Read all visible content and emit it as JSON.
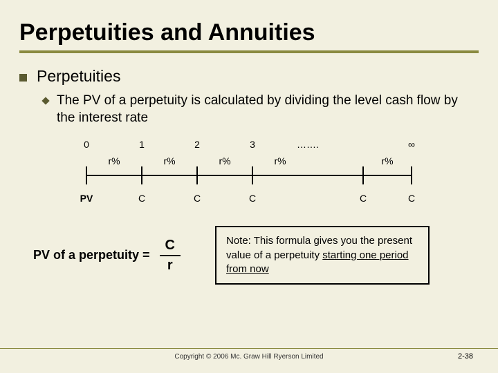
{
  "title": "Perpetuities and Annuities",
  "level1": "Perpetuities",
  "level2": "The PV of a perpetuity is calculated by dividing the level cash flow by the interest rate",
  "timeline": {
    "positions": [
      0,
      80,
      160,
      240,
      320,
      400,
      470
    ],
    "topLabels": [
      "0",
      "1",
      "2",
      "3",
      "…….",
      "∞"
    ],
    "topLabelIdx": [
      0,
      1,
      2,
      3,
      4,
      6
    ],
    "rates": [
      "r%",
      "r%",
      "r%",
      "r%",
      "r%"
    ],
    "rateMid": [
      40,
      120,
      200,
      280,
      435
    ],
    "bottom": [
      "PV",
      "C",
      "C",
      "C",
      "C",
      "C"
    ],
    "bottomIdx": [
      0,
      1,
      2,
      3,
      5,
      6
    ],
    "tickIdx": [
      0,
      1,
      2,
      3,
      5,
      6
    ]
  },
  "formula": {
    "label": "PV of a perpetuity  =",
    "num": "C",
    "den": "r"
  },
  "note": {
    "prefix": "Note: This formula gives you the present value of a perpetuity ",
    "underlined": "starting one period from now"
  },
  "copyright": "Copyright © 2006 Mc. Graw Hill Ryerson Limited",
  "pagenum": "2-38"
}
